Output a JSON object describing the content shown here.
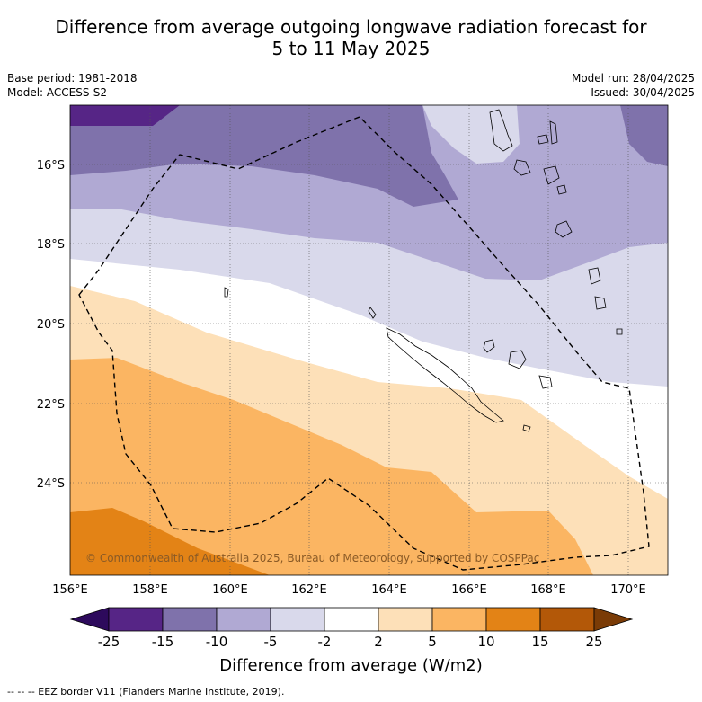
{
  "header": {
    "title_line1": "Difference from average outgoing longwave radiation forecast for",
    "title_line2": "5 to 11 May 2025",
    "base_period": "Base period: 1981-2018",
    "model": "Model: ACCESS-S2",
    "model_run": "Model run: 28/04/2025",
    "issued": "Issued: 30/04/2025"
  },
  "map": {
    "lon_labels": [
      "156°E",
      "158°E",
      "160°E",
      "162°E",
      "164°E",
      "166°E",
      "168°E",
      "170°E"
    ],
    "lat_labels": [
      "16°S",
      "18°S",
      "20°S",
      "22°S",
      "24°S"
    ],
    "copyright": "© Commonwealth of Australia 2025, Bureau of Meteorology, supported by COSPPac"
  },
  "colorbar": {
    "ticks": [
      "-25",
      "-15",
      "-10",
      "-5",
      "-2",
      "2",
      "5",
      "10",
      "15",
      "25"
    ],
    "colors": [
      "#2d0a5c",
      "#562586",
      "#7f72ab",
      "#b0a9d3",
      "#d9d9eb",
      "#ffffff",
      "#fde0b8",
      "#fbb562",
      "#e38316",
      "#b35808",
      "#7a3b06"
    ],
    "title": "Difference from average (W/m2)"
  },
  "legend": {
    "eez_line": "--  --  -- EEZ border V11 (Flanders Marine Institute, 2019)."
  }
}
